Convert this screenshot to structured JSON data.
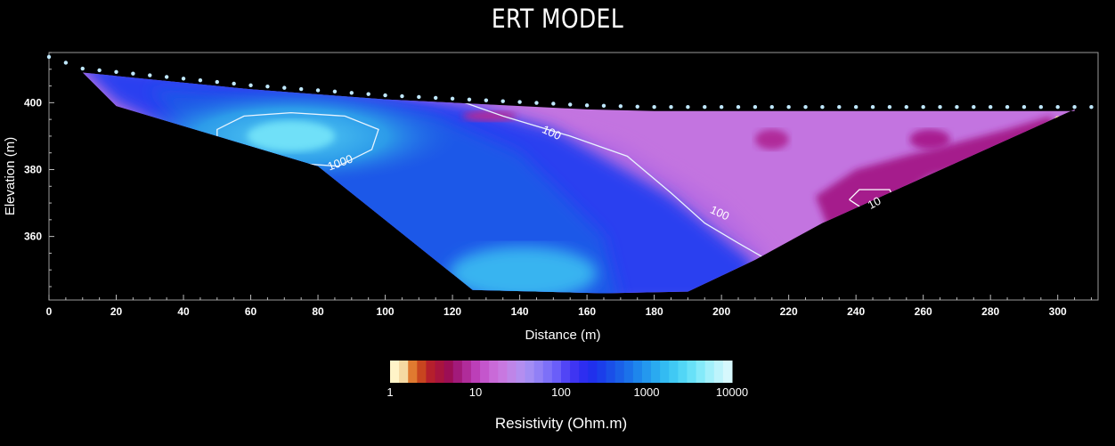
{
  "chart_data": {
    "type": "heatmap",
    "title": "ERT MODEL",
    "xlabel": "Distance (m)",
    "ylabel": "Elevation (m)",
    "xlim": [
      0,
      312
    ],
    "ylim": [
      341,
      415
    ],
    "x_ticks": [
      0,
      20,
      40,
      60,
      80,
      100,
      120,
      140,
      160,
      180,
      200,
      220,
      240,
      260,
      280,
      300
    ],
    "y_ticks": [
      360,
      380,
      400
    ],
    "topography": [
      [
        10,
        409
      ],
      [
        30,
        407
      ],
      [
        60,
        404
      ],
      [
        100,
        401
      ],
      [
        140,
        399
      ],
      [
        160,
        398
      ],
      [
        180,
        397.5
      ],
      [
        200,
        397.5
      ],
      [
        300,
        397.5
      ],
      [
        305,
        397.5
      ]
    ],
    "section_bottom": [
      [
        10,
        409
      ],
      [
        20,
        399
      ],
      [
        80,
        381
      ],
      [
        126,
        344
      ],
      [
        165,
        343
      ],
      [
        190,
        343.5
      ],
      [
        210,
        353
      ],
      [
        230,
        364
      ],
      [
        305,
        398
      ]
    ],
    "electrodes_x": [
      0,
      5,
      10,
      15,
      20,
      25,
      30,
      35,
      40,
      45,
      50,
      55,
      60,
      65,
      70,
      75,
      80,
      85,
      90,
      95,
      100,
      105,
      110,
      115,
      120,
      125,
      130,
      135,
      140,
      145,
      150,
      155,
      160,
      165,
      170,
      175,
      180,
      185,
      190,
      195,
      200,
      205,
      210,
      215,
      220,
      225,
      230,
      235,
      240,
      245,
      250,
      255,
      260,
      265,
      270,
      275,
      280,
      285,
      290,
      295,
      300,
      305,
      310
    ],
    "contour_labels": [
      {
        "text": "1000",
        "x": 87,
        "y": 381
      },
      {
        "text": "100",
        "x": 149,
        "y": 390
      },
      {
        "text": "100",
        "x": 199,
        "y": 366
      },
      {
        "text": "10",
        "x": 246,
        "y": 369
      }
    ],
    "colorbar": {
      "title": "Resistivity (Ohm.m)",
      "tick_labels": [
        "1",
        "10",
        "100",
        "1000",
        "10000"
      ],
      "scale": "log",
      "range": [
        1,
        10000
      ],
      "colors": [
        "#fff4c8",
        "#f5d9a2",
        "#e07a30",
        "#c8451f",
        "#b51f2c",
        "#a8143e",
        "#9c0e55",
        "#a21a7a",
        "#b02c9a",
        "#bc3fb8",
        "#c456cc",
        "#c96ad8",
        "#c878e0",
        "#bf85e8",
        "#b48ef0",
        "#a38df4",
        "#9180f6",
        "#7d70f8",
        "#6a5ef9",
        "#5145f6",
        "#3f35f2",
        "#2d2ef0",
        "#2030ec",
        "#1b3eea",
        "#1a4fe8",
        "#1a60e8",
        "#1b72ea",
        "#1e86ec",
        "#2498ee",
        "#2aaaf0",
        "#33bbf2",
        "#40c9f4",
        "#52d6f6",
        "#68e1f8",
        "#84eafa",
        "#a2f0fb",
        "#bdf4fc",
        "#d6f8fd"
      ]
    }
  }
}
